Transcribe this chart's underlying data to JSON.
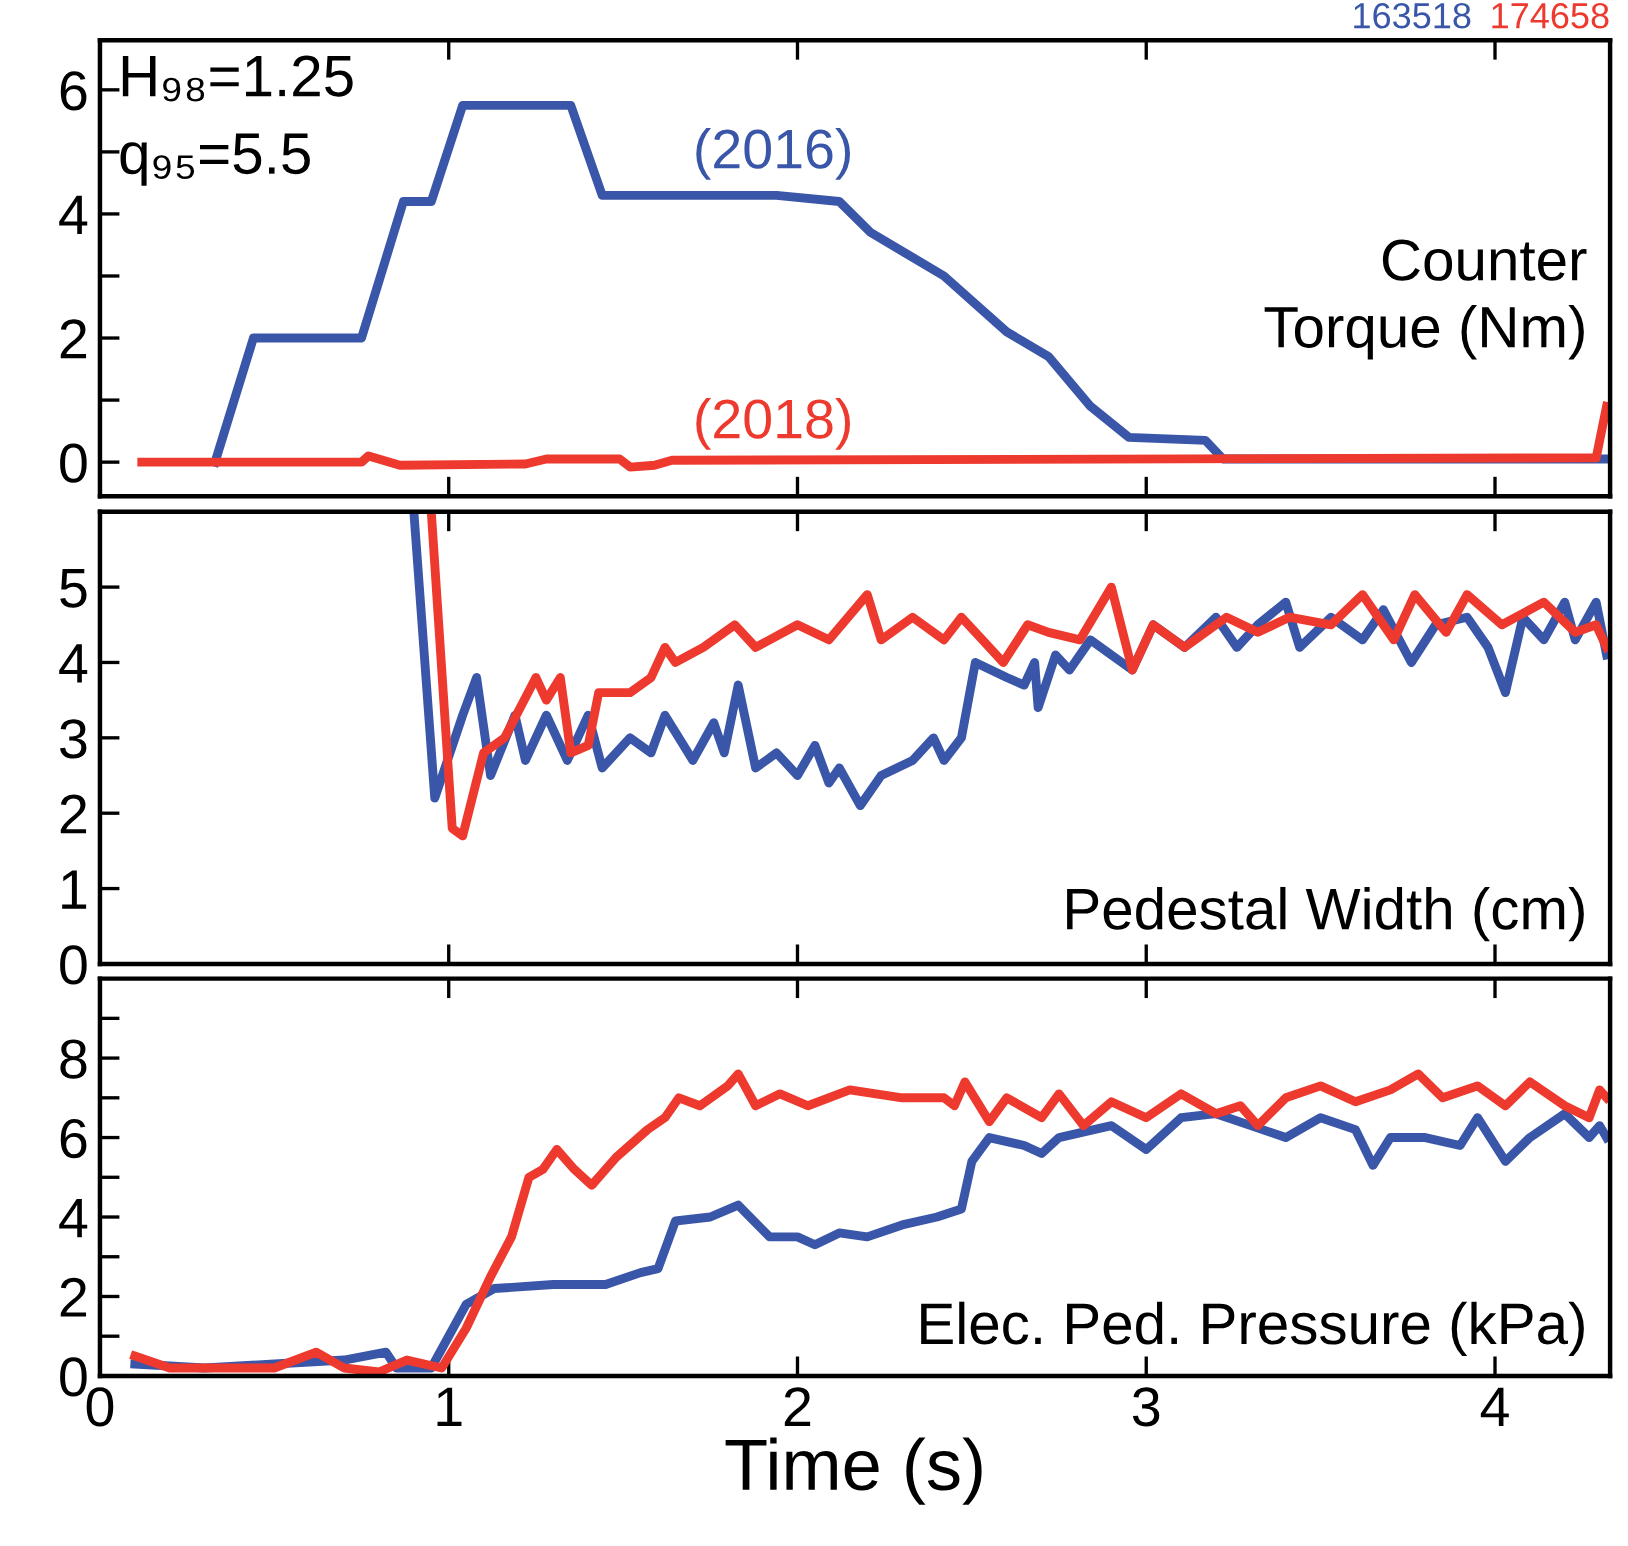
{
  "chart_data": [
    {
      "type": "line",
      "xlim": [
        0,
        4.33
      ],
      "ylim": [
        -0.55,
        6.8
      ],
      "xticks": [
        0,
        1,
        2,
        3,
        4
      ],
      "yticks": [
        0,
        {
          "value": 1,
          "label": null
        },
        2,
        {
          "value": 3,
          "label": null
        },
        4,
        {
          "value": 5,
          "label": null
        },
        6
      ],
      "tick_labels": "y",
      "grid": false,
      "legend": false,
      "line_style": "solid",
      "marker": "none",
      "series": [
        {
          "name": "163518",
          "color": "#3a56a8",
          "x": [
            0.33,
            0.44,
            0.75,
            0.87,
            0.95,
            1.04,
            1.35,
            1.44,
            1.94,
            2.12,
            2.21,
            2.42,
            2.6,
            2.72,
            2.84,
            2.95,
            3.17,
            3.22,
            4.32
          ],
          "values": [
            0,
            2,
            2,
            4.2,
            4.2,
            5.75,
            5.75,
            4.3,
            4.3,
            4.2,
            3.7,
            3.0,
            2.1,
            1.7,
            0.9,
            0.4,
            0.35,
            0.05,
            0.05
          ]
        },
        {
          "name": "174658",
          "color": "#ee3a2e",
          "x": [
            0.12,
            0.75,
            0.77,
            0.86,
            1.22,
            1.28,
            1.49,
            1.52,
            1.59,
            1.64,
            4.29,
            4.32
          ],
          "values": [
            0,
            0,
            0.1,
            -0.05,
            -0.03,
            0.05,
            0.05,
            -0.08,
            -0.05,
            0.03,
            0.07,
            0.9
          ]
        }
      ],
      "annotations": [
        {
          "text": "(2016)",
          "x": 1.7,
          "y": 4.3
        },
        {
          "text": "(2018)",
          "x": 1.7,
          "y": 0.05
        },
        "H₉₈=1.25",
        "q₉₅=5.5",
        "Counter\nTorque (Nm)"
      ]
    },
    {
      "type": "line",
      "xlim": [
        0,
        4.33
      ],
      "ylim": [
        0,
        6
      ],
      "xticks": [
        0,
        1,
        2,
        3,
        4
      ],
      "yticks": [
        0,
        1,
        2,
        3,
        4,
        5
      ],
      "tick_labels": "y",
      "grid": false,
      "legend": false,
      "line_style": "solid",
      "marker": "none",
      "series": [
        {
          "color": "#3a56a8",
          "x": [
            0.9,
            0.96,
            1.04,
            1.08,
            1.12,
            1.19,
            1.22,
            1.28,
            1.34,
            1.4,
            1.44,
            1.52,
            1.58,
            1.62,
            1.7,
            1.76,
            1.79,
            1.83,
            1.88,
            1.94,
            2.0,
            2.05,
            2.09,
            2.12,
            2.18,
            2.24,
            2.33,
            2.39,
            2.42,
            2.47,
            2.51,
            2.6,
            2.65,
            2.68,
            2.69,
            2.74,
            2.78,
            2.84,
            2.96,
            3.02,
            3.11,
            3.2,
            3.26,
            3.32,
            3.4,
            3.44,
            3.53,
            3.62,
            3.68,
            3.76,
            3.83,
            3.92,
            3.98,
            4.03,
            4.08,
            4.14,
            4.2,
            4.23,
            4.29,
            4.32
          ],
          "values": [
            6,
            2.2,
            3.3,
            3.8,
            2.5,
            3.3,
            2.7,
            3.3,
            2.7,
            3.3,
            2.6,
            3.0,
            2.8,
            3.3,
            2.7,
            3.2,
            2.8,
            3.7,
            2.6,
            2.8,
            2.5,
            2.9,
            2.4,
            2.6,
            2.1,
            2.5,
            2.7,
            3.0,
            2.7,
            3.0,
            4.0,
            3.8,
            3.7,
            4.0,
            3.4,
            4.1,
            3.9,
            4.3,
            3.9,
            4.5,
            4.2,
            4.6,
            4.2,
            4.5,
            4.8,
            4.2,
            4.6,
            4.3,
            4.7,
            4.0,
            4.5,
            4.6,
            4.2,
            3.6,
            4.6,
            4.3,
            4.8,
            4.3,
            4.8,
            4.1
          ]
        },
        {
          "color": "#ee3a2e",
          "x": [
            0.95,
            1.01,
            1.04,
            1.1,
            1.16,
            1.25,
            1.28,
            1.32,
            1.35,
            1.4,
            1.43,
            1.52,
            1.58,
            1.62,
            1.65,
            1.73,
            1.82,
            1.88,
            2.0,
            2.09,
            2.2,
            2.24,
            2.33,
            2.42,
            2.47,
            2.53,
            2.59,
            2.66,
            2.72,
            2.81,
            2.9,
            2.96,
            3.02,
            3.11,
            3.23,
            3.32,
            3.41,
            3.53,
            3.62,
            3.71,
            3.77,
            3.86,
            3.92,
            4.02,
            4.14,
            4.23,
            4.29,
            4.32
          ],
          "values": [
            6,
            1.8,
            1.7,
            2.8,
            3.0,
            3.8,
            3.5,
            3.8,
            2.8,
            2.9,
            3.6,
            3.6,
            3.8,
            4.2,
            4.0,
            4.2,
            4.5,
            4.2,
            4.5,
            4.3,
            4.9,
            4.3,
            4.6,
            4.3,
            4.6,
            4.3,
            4.0,
            4.5,
            4.4,
            4.3,
            5.0,
            3.9,
            4.5,
            4.2,
            4.6,
            4.4,
            4.6,
            4.5,
            4.9,
            4.3,
            4.9,
            4.4,
            4.9,
            4.5,
            4.8,
            4.4,
            4.5,
            4.2
          ]
        }
      ],
      "annotations": [
        "Pedestal Width (cm)"
      ]
    },
    {
      "type": "line",
      "xlim": [
        0,
        4.33
      ],
      "ylim": [
        0,
        10
      ],
      "xticks": [
        0,
        1,
        2,
        3,
        4
      ],
      "yticks": [
        0,
        {
          "value": 1,
          "label": null
        },
        2,
        {
          "value": 3,
          "label": null
        },
        4,
        {
          "value": 5,
          "label": null
        },
        6,
        {
          "value": 7,
          "label": null
        },
        8,
        {
          "value": 9,
          "label": null
        }
      ],
      "xlabel": "Time (s)",
      "grid": false,
      "legend": false,
      "line_style": "solid",
      "marker": "none",
      "series": [
        {
          "color": "#3a56a8",
          "x": [
            0.1,
            0.3,
            0.5,
            0.7,
            0.82,
            0.85,
            0.95,
            1.05,
            1.13,
            1.3,
            1.45,
            1.55,
            1.6,
            1.65,
            1.75,
            1.83,
            1.92,
            2.0,
            2.05,
            2.12,
            2.2,
            2.3,
            2.4,
            2.47,
            2.5,
            2.55,
            2.65,
            2.7,
            2.75,
            2.9,
            3.0,
            3.1,
            3.2,
            3.3,
            3.4,
            3.5,
            3.6,
            3.65,
            3.7,
            3.8,
            3.9,
            3.95,
            4.03,
            4.1,
            4.2,
            4.27,
            4.3,
            4.32
          ],
          "values": [
            0.3,
            0.2,
            0.3,
            0.4,
            0.6,
            0.2,
            0.2,
            1.8,
            2.2,
            2.3,
            2.3,
            2.6,
            2.7,
            3.9,
            4.0,
            4.3,
            3.5,
            3.5,
            3.3,
            3.6,
            3.5,
            3.8,
            4.0,
            4.2,
            5.4,
            6.0,
            5.8,
            5.6,
            6.0,
            6.3,
            5.7,
            6.5,
            6.6,
            6.3,
            6.0,
            6.5,
            6.2,
            5.3,
            6.0,
            6.0,
            5.8,
            6.5,
            5.4,
            6.0,
            6.6,
            6.0,
            6.3,
            6.0
          ]
        },
        {
          "color": "#ee3a2e",
          "x": [
            0.1,
            0.2,
            0.5,
            0.62,
            0.7,
            0.8,
            0.88,
            0.98,
            1.05,
            1.12,
            1.18,
            1.23,
            1.27,
            1.31,
            1.36,
            1.41,
            1.48,
            1.57,
            1.62,
            1.66,
            1.72,
            1.8,
            1.83,
            1.88,
            1.95,
            2.03,
            2.15,
            2.3,
            2.42,
            2.45,
            2.48,
            2.55,
            2.6,
            2.7,
            2.75,
            2.82,
            2.9,
            3.0,
            3.1,
            3.2,
            3.27,
            3.32,
            3.4,
            3.5,
            3.6,
            3.7,
            3.78,
            3.85,
            3.95,
            4.03,
            4.1,
            4.2,
            4.27,
            4.3,
            4.32
          ],
          "values": [
            0.5,
            0.2,
            0.2,
            0.6,
            0.2,
            0.1,
            0.4,
            0.2,
            1.2,
            2.5,
            3.5,
            5.0,
            5.2,
            5.7,
            5.2,
            4.8,
            5.5,
            6.2,
            6.5,
            7.0,
            6.8,
            7.3,
            7.6,
            6.8,
            7.1,
            6.8,
            7.2,
            7.0,
            7.0,
            6.8,
            7.4,
            6.4,
            7.0,
            6.5,
            7.1,
            6.3,
            6.9,
            6.5,
            7.1,
            6.6,
            6.8,
            6.3,
            7.0,
            7.3,
            6.9,
            7.2,
            7.6,
            7.0,
            7.3,
            6.8,
            7.4,
            6.8,
            6.5,
            7.2,
            7.0
          ]
        }
      ],
      "annotations": [
        "Elec. Ped. Pressure (kPa)"
      ]
    }
  ]
}
